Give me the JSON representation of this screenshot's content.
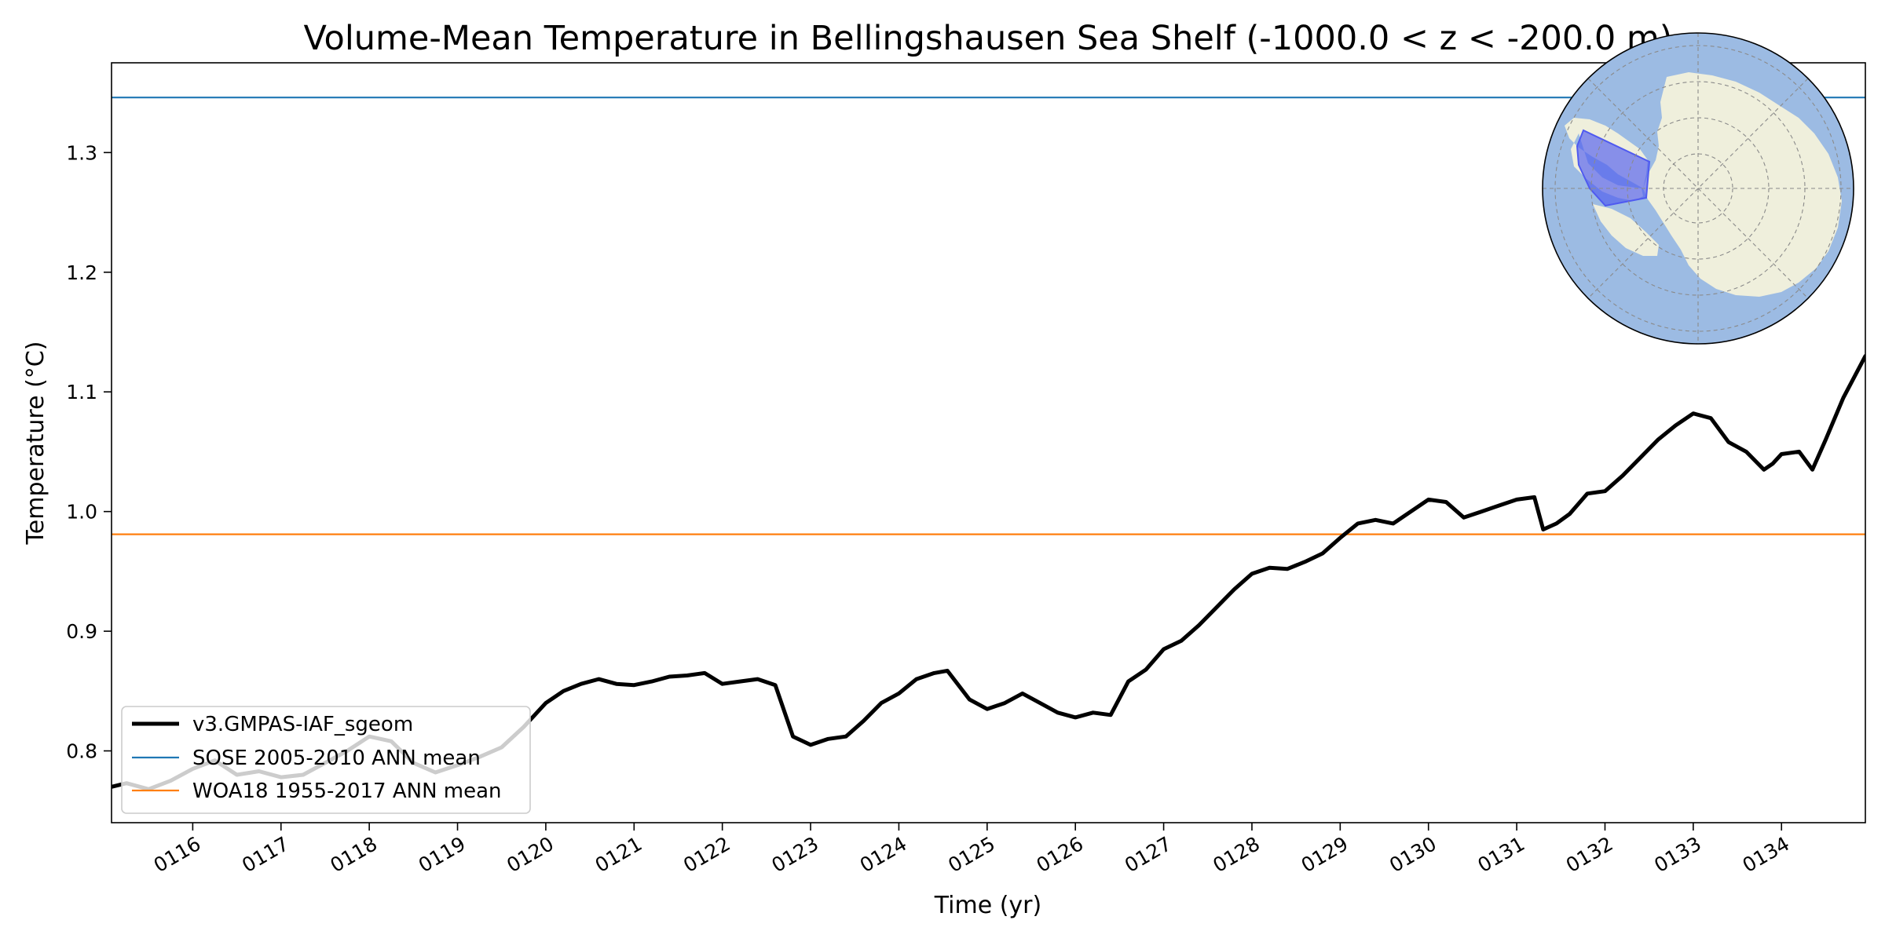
{
  "chart_data": {
    "type": "line",
    "title": "Volume-Mean Temperature in Bellingshausen Sea Shelf (-1000.0 < z < -200.0 m)",
    "xlabel": "Time (yr)",
    "ylabel": "Temperature ($^\\circ$C)",
    "ylabel_display": "Temperature (°C)",
    "xlim": [
      115.08,
      134.95
    ],
    "ylim": [
      0.74,
      1.375
    ],
    "xticks": [
      116,
      117,
      118,
      119,
      120,
      121,
      122,
      123,
      124,
      125,
      126,
      127,
      128,
      129,
      130,
      131,
      132,
      133,
      134
    ],
    "xtick_labels": [
      "0116",
      "0117",
      "0118",
      "0119",
      "0120",
      "0121",
      "0122",
      "0123",
      "0124",
      "0125",
      "0126",
      "0127",
      "0128",
      "0129",
      "0130",
      "0131",
      "0132",
      "0133",
      "0134"
    ],
    "yticks": [
      0.8,
      0.9,
      1.0,
      1.1,
      1.2,
      1.3
    ],
    "ytick_labels": [
      "0.8",
      "0.9",
      "1.0",
      "1.1",
      "1.2",
      "1.3"
    ],
    "grid": false,
    "legend_position": "lower-left",
    "series": [
      {
        "name": "v3.GMPAS-IAF_sgeom",
        "color": "#000000",
        "x": [
          115.08,
          115.25,
          115.5,
          115.75,
          116.0,
          116.25,
          116.5,
          116.75,
          117.0,
          117.25,
          117.5,
          117.75,
          118.0,
          118.25,
          118.5,
          118.75,
          119.0,
          119.25,
          119.5,
          119.75,
          120.0,
          120.2,
          120.4,
          120.6,
          120.8,
          121.0,
          121.2,
          121.4,
          121.6,
          121.8,
          122.0,
          122.2,
          122.4,
          122.6,
          122.8,
          123.0,
          123.2,
          123.4,
          123.6,
          123.8,
          124.0,
          124.2,
          124.4,
          124.55,
          124.8,
          125.0,
          125.2,
          125.4,
          125.6,
          125.8,
          126.0,
          126.2,
          126.4,
          126.6,
          126.8,
          127.0,
          127.2,
          127.4,
          127.6,
          127.8,
          128.0,
          128.2,
          128.4,
          128.6,
          128.8,
          129.0,
          129.2,
          129.4,
          129.6,
          129.8,
          130.0,
          130.2,
          130.4,
          130.6,
          130.8,
          131.0,
          131.2,
          131.3,
          131.45,
          131.6,
          131.8,
          132.0,
          132.2,
          132.4,
          132.6,
          132.8,
          133.0,
          133.2,
          133.4,
          133.6,
          133.8,
          133.9,
          134.0,
          134.2,
          134.35,
          134.5,
          134.7,
          134.95
        ],
        "values": [
          0.77,
          0.773,
          0.768,
          0.775,
          0.785,
          0.792,
          0.78,
          0.783,
          0.778,
          0.78,
          0.79,
          0.8,
          0.812,
          0.808,
          0.79,
          0.782,
          0.788,
          0.795,
          0.803,
          0.82,
          0.84,
          0.85,
          0.856,
          0.86,
          0.856,
          0.855,
          0.858,
          0.862,
          0.863,
          0.865,
          0.856,
          0.858,
          0.86,
          0.855,
          0.812,
          0.805,
          0.81,
          0.812,
          0.825,
          0.84,
          0.848,
          0.86,
          0.865,
          0.867,
          0.843,
          0.835,
          0.84,
          0.848,
          0.84,
          0.832,
          0.828,
          0.832,
          0.83,
          0.858,
          0.868,
          0.885,
          0.892,
          0.905,
          0.92,
          0.935,
          0.948,
          0.953,
          0.952,
          0.958,
          0.965,
          0.978,
          0.99,
          0.993,
          0.99,
          1.0,
          1.01,
          1.008,
          0.995,
          1.0,
          1.005,
          1.01,
          1.012,
          0.985,
          0.99,
          0.998,
          1.015,
          1.017,
          1.03,
          1.045,
          1.06,
          1.072,
          1.082,
          1.078,
          1.058,
          1.05,
          1.035,
          1.04,
          1.048,
          1.05,
          1.035,
          1.06,
          1.095,
          1.13
        ]
      },
      {
        "name": "SOSE 2005-2010 ANN mean",
        "color": "#1f77b4",
        "value": 1.346
      },
      {
        "name": "WOA18 1955-2017 ANN mean",
        "color": "#ff7f0e",
        "value": 0.981
      }
    ],
    "inset_map": {
      "description_icon": "antarctica-polar-map-icon",
      "ocean_color": "#9cbbe3",
      "land_color": "#efefdc",
      "region_color": "#4f5af0"
    }
  }
}
